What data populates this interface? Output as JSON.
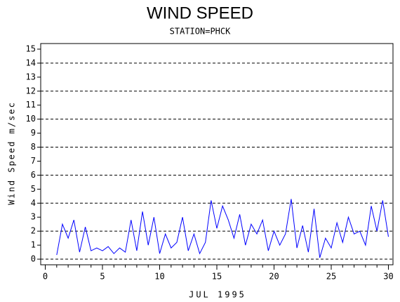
{
  "chart_data": {
    "type": "line",
    "title": "WIND SPEED",
    "subtitle": "STATION=PHCK",
    "x_label": "JUL 1995",
    "y_label": "Wind Speed m/sec",
    "xlim": [
      -0.4,
      30.4
    ],
    "ylim": [
      -0.4,
      15.4
    ],
    "xticks": [
      0,
      5,
      10,
      15,
      20,
      25,
      30
    ],
    "xminor_step": 1,
    "yticks": [
      0,
      1,
      2,
      3,
      4,
      5,
      6,
      7,
      8,
      9,
      10,
      11,
      12,
      13,
      14,
      15
    ],
    "grid_values": [
      0,
      2,
      4,
      6,
      8,
      10,
      12,
      14
    ],
    "x": [
      1,
      1.5,
      2,
      2.5,
      3,
      3.5,
      4,
      4.5,
      5,
      5.5,
      6,
      6.5,
      7,
      7.5,
      8,
      8.5,
      9,
      9.5,
      10,
      10.5,
      11,
      11.5,
      12,
      12.5,
      13,
      13.5,
      14,
      14.5,
      15,
      15.5,
      16,
      16.5,
      17,
      17.5,
      18,
      18.5,
      19,
      19.5,
      20,
      20.5,
      21,
      21.5,
      22,
      22.5,
      23,
      23.5,
      24,
      24.5,
      25,
      25.5,
      26,
      26.5,
      27,
      27.5,
      28,
      28.5,
      29,
      29.5,
      30
    ],
    "series": [
      {
        "name": "Wind Speed",
        "color": "#0000ff",
        "values": [
          0.3,
          2.5,
          1.5,
          2.8,
          0.5,
          2.3,
          0.6,
          0.8,
          0.6,
          0.9,
          0.4,
          0.8,
          0.5,
          2.8,
          0.6,
          3.4,
          1.0,
          3.0,
          0.4,
          1.8,
          0.8,
          1.2,
          3.0,
          0.6,
          1.8,
          0.4,
          1.2,
          4.2,
          2.2,
          3.8,
          2.8,
          1.5,
          3.2,
          1.0,
          2.5,
          1.8,
          2.8,
          0.6,
          2.0,
          1.0,
          1.8,
          4.3,
          0.8,
          2.4,
          0.5,
          3.6,
          0.1,
          1.5,
          0.8,
          2.6,
          1.2,
          3.0,
          1.8,
          2.0,
          1.0,
          3.8,
          2.0,
          4.2,
          1.6
        ]
      }
    ]
  }
}
